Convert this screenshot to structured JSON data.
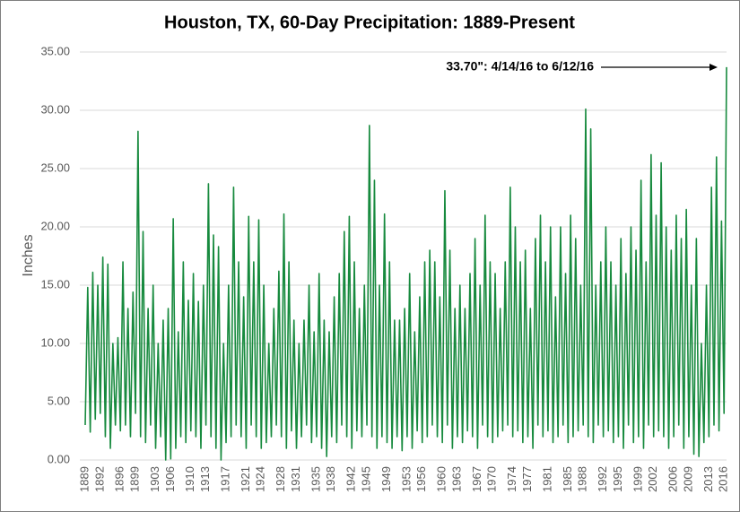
{
  "chart_data": {
    "type": "line",
    "title": "Houston, TX, 60-Day Precipitation: 1889-Present",
    "y_label": "Inches",
    "annotation": "33.70\": 4/14/16 to 6/12/16",
    "color": "#178a3e",
    "grid": true,
    "xlim": [
      1889,
      2016.5
    ],
    "ylim": [
      0,
      35
    ],
    "xticks": [
      1889,
      1892,
      1896,
      1899,
      1903,
      1906,
      1910,
      1913,
      1917,
      1921,
      1924,
      1928,
      1931,
      1935,
      1938,
      1942,
      1945,
      1949,
      1953,
      1956,
      1960,
      1963,
      1967,
      1970,
      1974,
      1977,
      1981,
      1985,
      1988,
      1992,
      1995,
      1999,
      2002,
      2006,
      2009,
      2013,
      2016
    ],
    "yticks": [
      {
        "value": 0,
        "label": "0.00"
      },
      {
        "value": 5,
        "label": "5.00"
      },
      {
        "value": 10,
        "label": "10.00"
      },
      {
        "value": 15,
        "label": "15.00"
      },
      {
        "value": 20,
        "label": "20.00"
      },
      {
        "value": 25,
        "label": "25.00"
      },
      {
        "value": 30,
        "label": "30.00"
      },
      {
        "value": 35,
        "label": "35.00"
      }
    ],
    "x": [
      1889,
      1889.5,
      1890,
      1890.5,
      1891,
      1891.5,
      1892,
      1892.5,
      1893,
      1893.5,
      1894,
      1894.5,
      1895,
      1895.5,
      1896,
      1896.5,
      1897,
      1897.5,
      1898,
      1898.5,
      1899,
      1899.5,
      1900,
      1900.5,
      1901,
      1901.5,
      1902,
      1902.5,
      1903,
      1903.5,
      1904,
      1904.5,
      1905,
      1905.5,
      1906,
      1906.5,
      1907,
      1907.5,
      1908,
      1908.5,
      1909,
      1909.5,
      1910,
      1910.5,
      1911,
      1911.5,
      1912,
      1912.5,
      1913,
      1913.5,
      1914,
      1914.5,
      1915,
      1915.5,
      1916,
      1916.5,
      1917,
      1917.5,
      1918,
      1918.5,
      1919,
      1919.5,
      1920,
      1920.5,
      1921,
      1921.5,
      1922,
      1922.5,
      1923,
      1923.5,
      1924,
      1924.5,
      1925,
      1925.5,
      1926,
      1926.5,
      1927,
      1927.5,
      1928,
      1928.5,
      1929,
      1929.5,
      1930,
      1930.5,
      1931,
      1931.5,
      1932,
      1932.5,
      1933,
      1933.5,
      1934,
      1934.5,
      1935,
      1935.5,
      1936,
      1936.5,
      1937,
      1937.5,
      1938,
      1938.5,
      1939,
      1939.5,
      1940,
      1940.5,
      1941,
      1941.5,
      1942,
      1942.5,
      1943,
      1943.5,
      1944,
      1944.5,
      1945,
      1945.5,
      1946,
      1946.5,
      1947,
      1947.5,
      1948,
      1948.5,
      1949,
      1949.5,
      1950,
      1950.5,
      1951,
      1951.5,
      1952,
      1952.5,
      1953,
      1953.5,
      1954,
      1954.5,
      1955,
      1955.5,
      1956,
      1956.5,
      1957,
      1957.5,
      1958,
      1958.5,
      1959,
      1959.5,
      1960,
      1960.5,
      1961,
      1961.5,
      1962,
      1962.5,
      1963,
      1963.5,
      1964,
      1964.5,
      1965,
      1965.5,
      1966,
      1966.5,
      1967,
      1967.5,
      1968,
      1968.5,
      1969,
      1969.5,
      1970,
      1970.5,
      1971,
      1971.5,
      1972,
      1972.5,
      1973,
      1973.5,
      1974,
      1974.5,
      1975,
      1975.5,
      1976,
      1976.5,
      1977,
      1977.5,
      1978,
      1978.5,
      1979,
      1979.5,
      1980,
      1980.5,
      1981,
      1981.5,
      1982,
      1982.5,
      1983,
      1983.5,
      1984,
      1984.5,
      1985,
      1985.5,
      1986,
      1986.5,
      1987,
      1987.5,
      1988,
      1988.5,
      1989,
      1989.5,
      1990,
      1990.5,
      1991,
      1991.5,
      1992,
      1992.5,
      1993,
      1993.5,
      1994,
      1994.5,
      1995,
      1995.5,
      1996,
      1996.5,
      1997,
      1997.5,
      1998,
      1998.5,
      1999,
      1999.5,
      2000,
      2000.5,
      2001,
      2001.5,
      2002,
      2002.5,
      2003,
      2003.5,
      2004,
      2004.5,
      2005,
      2005.5,
      2006,
      2006.5,
      2007,
      2007.5,
      2008,
      2008.5,
      2009,
      2009.5,
      2010,
      2010.5,
      2011,
      2011.5,
      2012,
      2012.5,
      2013,
      2013.5,
      2014,
      2014.5,
      2015,
      2015.5,
      2016,
      2016.5
    ],
    "values": [
      3,
      14.8,
      2.4,
      16.1,
      3.5,
      15,
      4,
      17.4,
      2,
      16.8,
      1,
      10,
      3,
      10.5,
      2.5,
      17,
      3,
      13,
      2,
      14.4,
      4,
      28.2,
      2,
      19.6,
      1.5,
      13,
      3,
      15,
      1,
      10,
      2,
      12,
      0,
      13,
      0.1,
      20.7,
      1,
      11,
      2,
      17,
      1.5,
      13.7,
      2.5,
      16,
      2,
      13.6,
      1,
      15,
      3,
      23.7,
      2,
      19.3,
      1,
      18.3,
      0,
      10,
      1.5,
      15,
      2,
      23.4,
      3,
      17,
      2,
      14,
      1,
      20.9,
      3,
      17,
      2,
      20.6,
      1,
      15,
      1.5,
      10,
      2,
      13,
      3,
      16.2,
      2,
      21.1,
      1,
      17,
      2.5,
      12,
      1,
      10,
      2,
      12,
      3,
      15,
      1.5,
      11,
      2,
      16,
      1,
      12,
      0.3,
      11,
      2,
      14,
      1.5,
      16,
      3,
      19.6,
      2,
      20.9,
      1,
      17,
      2.5,
      13,
      2,
      15,
      3,
      28.7,
      2,
      24,
      1,
      15,
      2,
      21.1,
      1.5,
      17,
      1,
      12,
      2,
      12,
      0.8,
      13,
      2,
      16,
      1,
      11,
      2.5,
      14,
      1.5,
      17,
      2,
      18,
      3,
      17,
      2,
      14,
      1.5,
      23.1,
      3,
      18,
      1,
      13,
      2,
      15,
      1.5,
      13,
      2.5,
      16,
      2,
      19,
      1,
      15,
      3,
      21,
      2,
      17,
      1.5,
      16,
      2,
      13,
      2.5,
      17,
      3,
      23.4,
      2,
      20,
      2.5,
      17,
      1.5,
      18,
      2,
      13,
      1,
      19,
      3,
      21,
      2,
      17,
      2.5,
      20,
      1.5,
      14,
      2,
      20,
      3,
      16,
      1.5,
      21,
      2,
      19,
      2.5,
      15,
      3,
      30.1,
      2,
      28.4,
      1.5,
      15,
      3,
      17,
      2,
      20,
      2.5,
      17,
      1.5,
      15,
      2,
      19,
      1,
      16,
      3,
      20,
      1.5,
      18,
      2,
      24,
      1,
      17,
      3,
      26.2,
      2,
      21,
      2.5,
      25.5,
      2,
      20,
      1,
      18,
      2,
      21,
      3,
      19,
      1,
      21.5,
      2,
      15,
      0.5,
      19,
      0.3,
      10,
      1.5,
      15,
      2,
      23.4,
      3,
      26,
      2.5,
      20.5,
      4,
      33.7
    ]
  }
}
